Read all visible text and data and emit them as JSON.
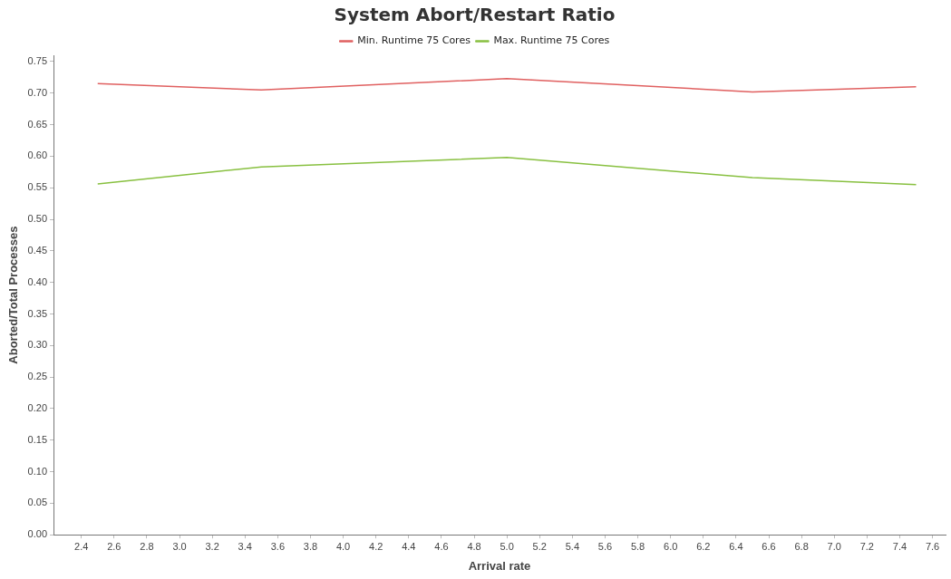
{
  "chart_data": {
    "type": "line",
    "title": "System Abort/Restart Ratio",
    "xlabel": "Arrival rate",
    "ylabel": "Aborted/Total Processes",
    "x": [
      2.5,
      3.5,
      5.0,
      6.5,
      7.5
    ],
    "series": [
      {
        "name": "Min. Runtime 75 Cores",
        "color": "#e06060",
        "values": [
          0.715,
          0.705,
          0.723,
          0.702,
          0.71
        ]
      },
      {
        "name": "Max. Runtime 75 Cores",
        "color": "#88c040",
        "values": [
          0.556,
          0.583,
          0.598,
          0.566,
          0.555
        ]
      }
    ],
    "xlim": [
      2.23,
      7.68
    ],
    "xticks": [
      2.4,
      2.6,
      2.8,
      {
        "value": 3,
        "label": "3.0"
      },
      3.2,
      3.4,
      3.6,
      3.8,
      {
        "value": 4,
        "label": "4.0"
      },
      4.2,
      4.4,
      4.6,
      4.8,
      {
        "value": 5,
        "label": "5.0"
      },
      5.2,
      5.4,
      5.6,
      5.8,
      {
        "value": 6,
        "label": "6.0"
      },
      6.2,
      6.4,
      6.6,
      6.8,
      {
        "value": 7,
        "label": "7.0"
      },
      7.2,
      7.4,
      7.6
    ],
    "ylim": [
      0,
      0.76
    ],
    "yticks": [
      {
        "value": 0,
        "label": "0.00"
      },
      0.05,
      {
        "value": 0.1,
        "label": "0.10"
      },
      0.15,
      {
        "value": 0.2,
        "label": "0.20"
      },
      0.25,
      {
        "value": 0.3,
        "label": "0.30"
      },
      0.35,
      {
        "value": 0.4,
        "label": "0.40"
      },
      0.45,
      {
        "value": 0.5,
        "label": "0.50"
      },
      0.55,
      {
        "value": 0.6,
        "label": "0.60"
      },
      0.65,
      {
        "value": 0.7,
        "label": "0.70"
      },
      0.75
    ],
    "legend": "top",
    "grid": false,
    "marker": "none",
    "line_style": "solid"
  }
}
